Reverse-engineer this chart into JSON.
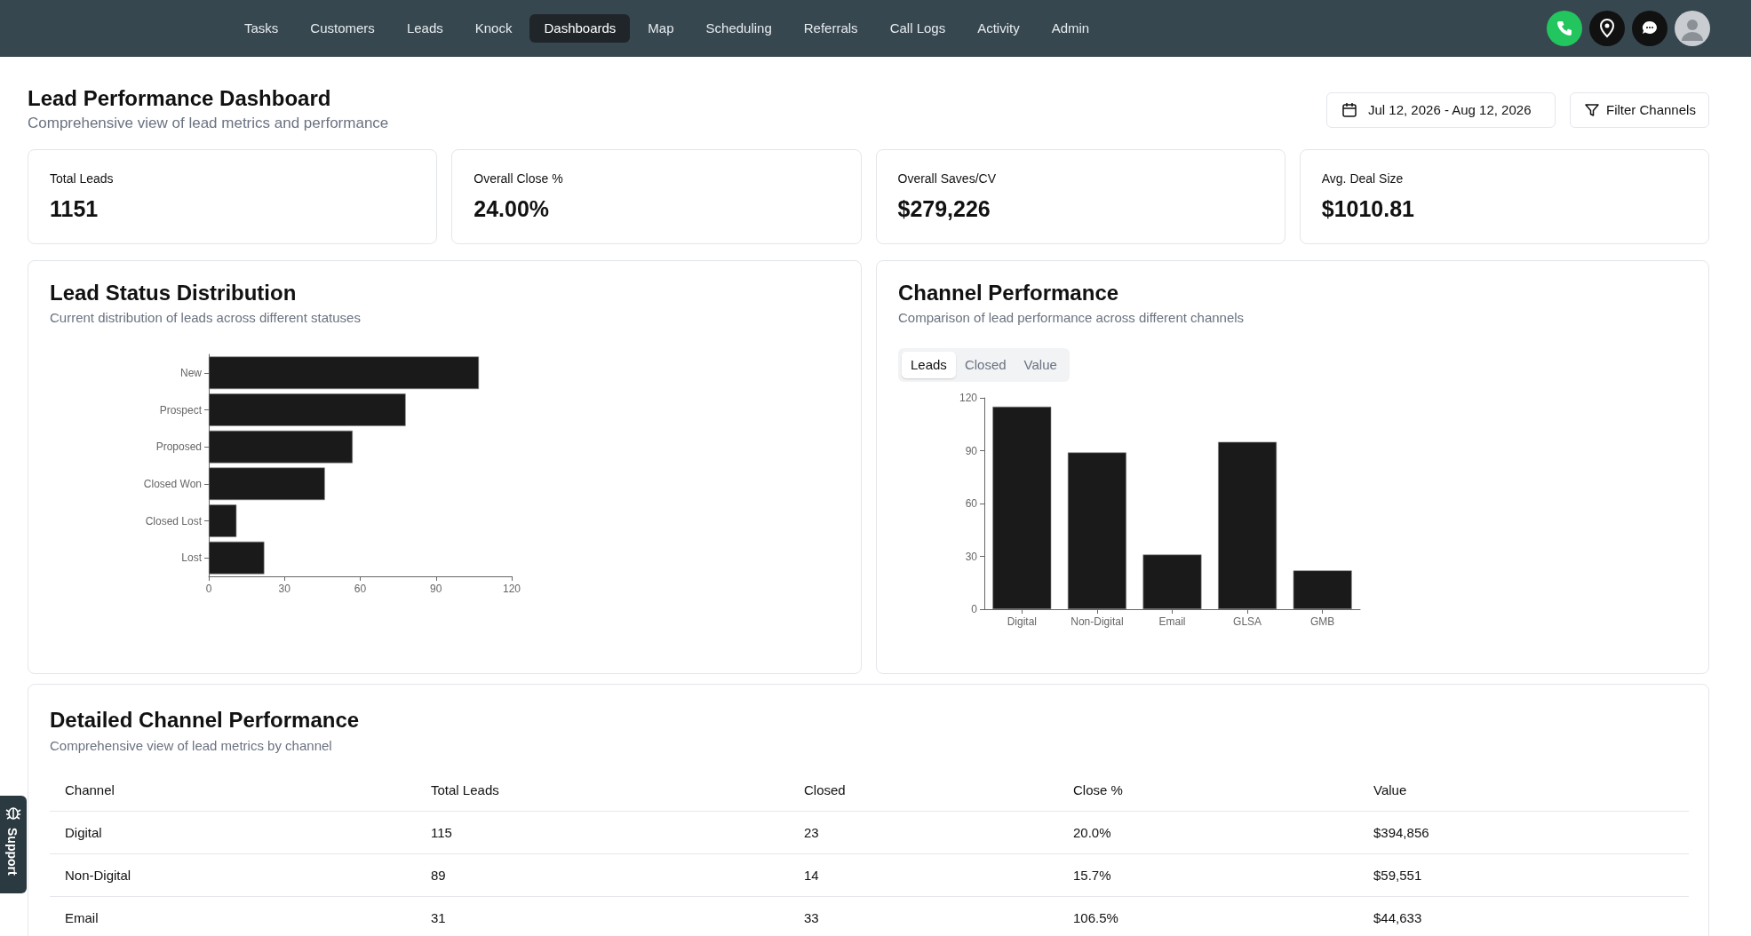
{
  "chart_data": [
    {
      "type": "other",
      "title": "Lead Performance Dashboard",
      "subtitle": "Comprehensive view of lead metrics and performance",
      "annotations": [
        "Tasks",
        "Customers",
        "Leads",
        "Knock",
        "Dashboards",
        "Map",
        "Scheduling",
        "Referrals",
        "Call Logs",
        "Activity",
        "Admin",
        "Jul 12, 2026 - Aug 12, 2026",
        "Filter Channels",
        "Support"
      ]
    },
    {
      "type": "other",
      "annotations": [
        "Total Leads",
        "1151",
        "Overall Close %",
        "24.00%",
        "Overall Saves/CV",
        "$279,226",
        "Avg. Deal Size",
        "$1010.81"
      ]
    },
    {
      "type": "bar",
      "orientation": "horizontal",
      "title": "Lead Status Distribution",
      "subtitle": "Current distribution of leads across different statuses",
      "categories": [
        "New",
        "Prospect",
        "Proposed",
        "Closed Won",
        "Closed Lost",
        "Lost"
      ],
      "values": [
        107,
        78,
        57,
        46,
        11,
        22
      ],
      "color": "#1a1a1a",
      "xlim": [
        0,
        120
      ],
      "xticks": [
        0,
        30,
        60,
        90,
        120
      ]
    },
    {
      "type": "bar",
      "title": "Channel Performance",
      "subtitle": "Comparison of lead performance across different channels",
      "annotations": [
        "Leads",
        "Closed",
        "Value"
      ],
      "categories": [
        "Digital",
        "Non-Digital",
        "Email",
        "GLSA",
        "GMB"
      ],
      "values": [
        115,
        89,
        31,
        95,
        22
      ],
      "color": "#1a1a1a",
      "ylim": [
        0,
        120
      ],
      "yticks": [
        0,
        30,
        60,
        90,
        120
      ]
    },
    {
      "type": "other",
      "title": "Detailed Channel Performance",
      "subtitle": "Comprehensive view of lead metrics by channel",
      "annotations": [
        "Channel",
        "Total Leads",
        "Closed",
        "Close %",
        "Value",
        "Digital",
        "115",
        "23",
        "20.0%",
        "$394,856",
        "Non-Digital",
        "89",
        "14",
        "15.7%",
        "$59,551",
        "Email",
        "31",
        "33",
        "106.5%",
        "$44,633"
      ]
    }
  ]
}
